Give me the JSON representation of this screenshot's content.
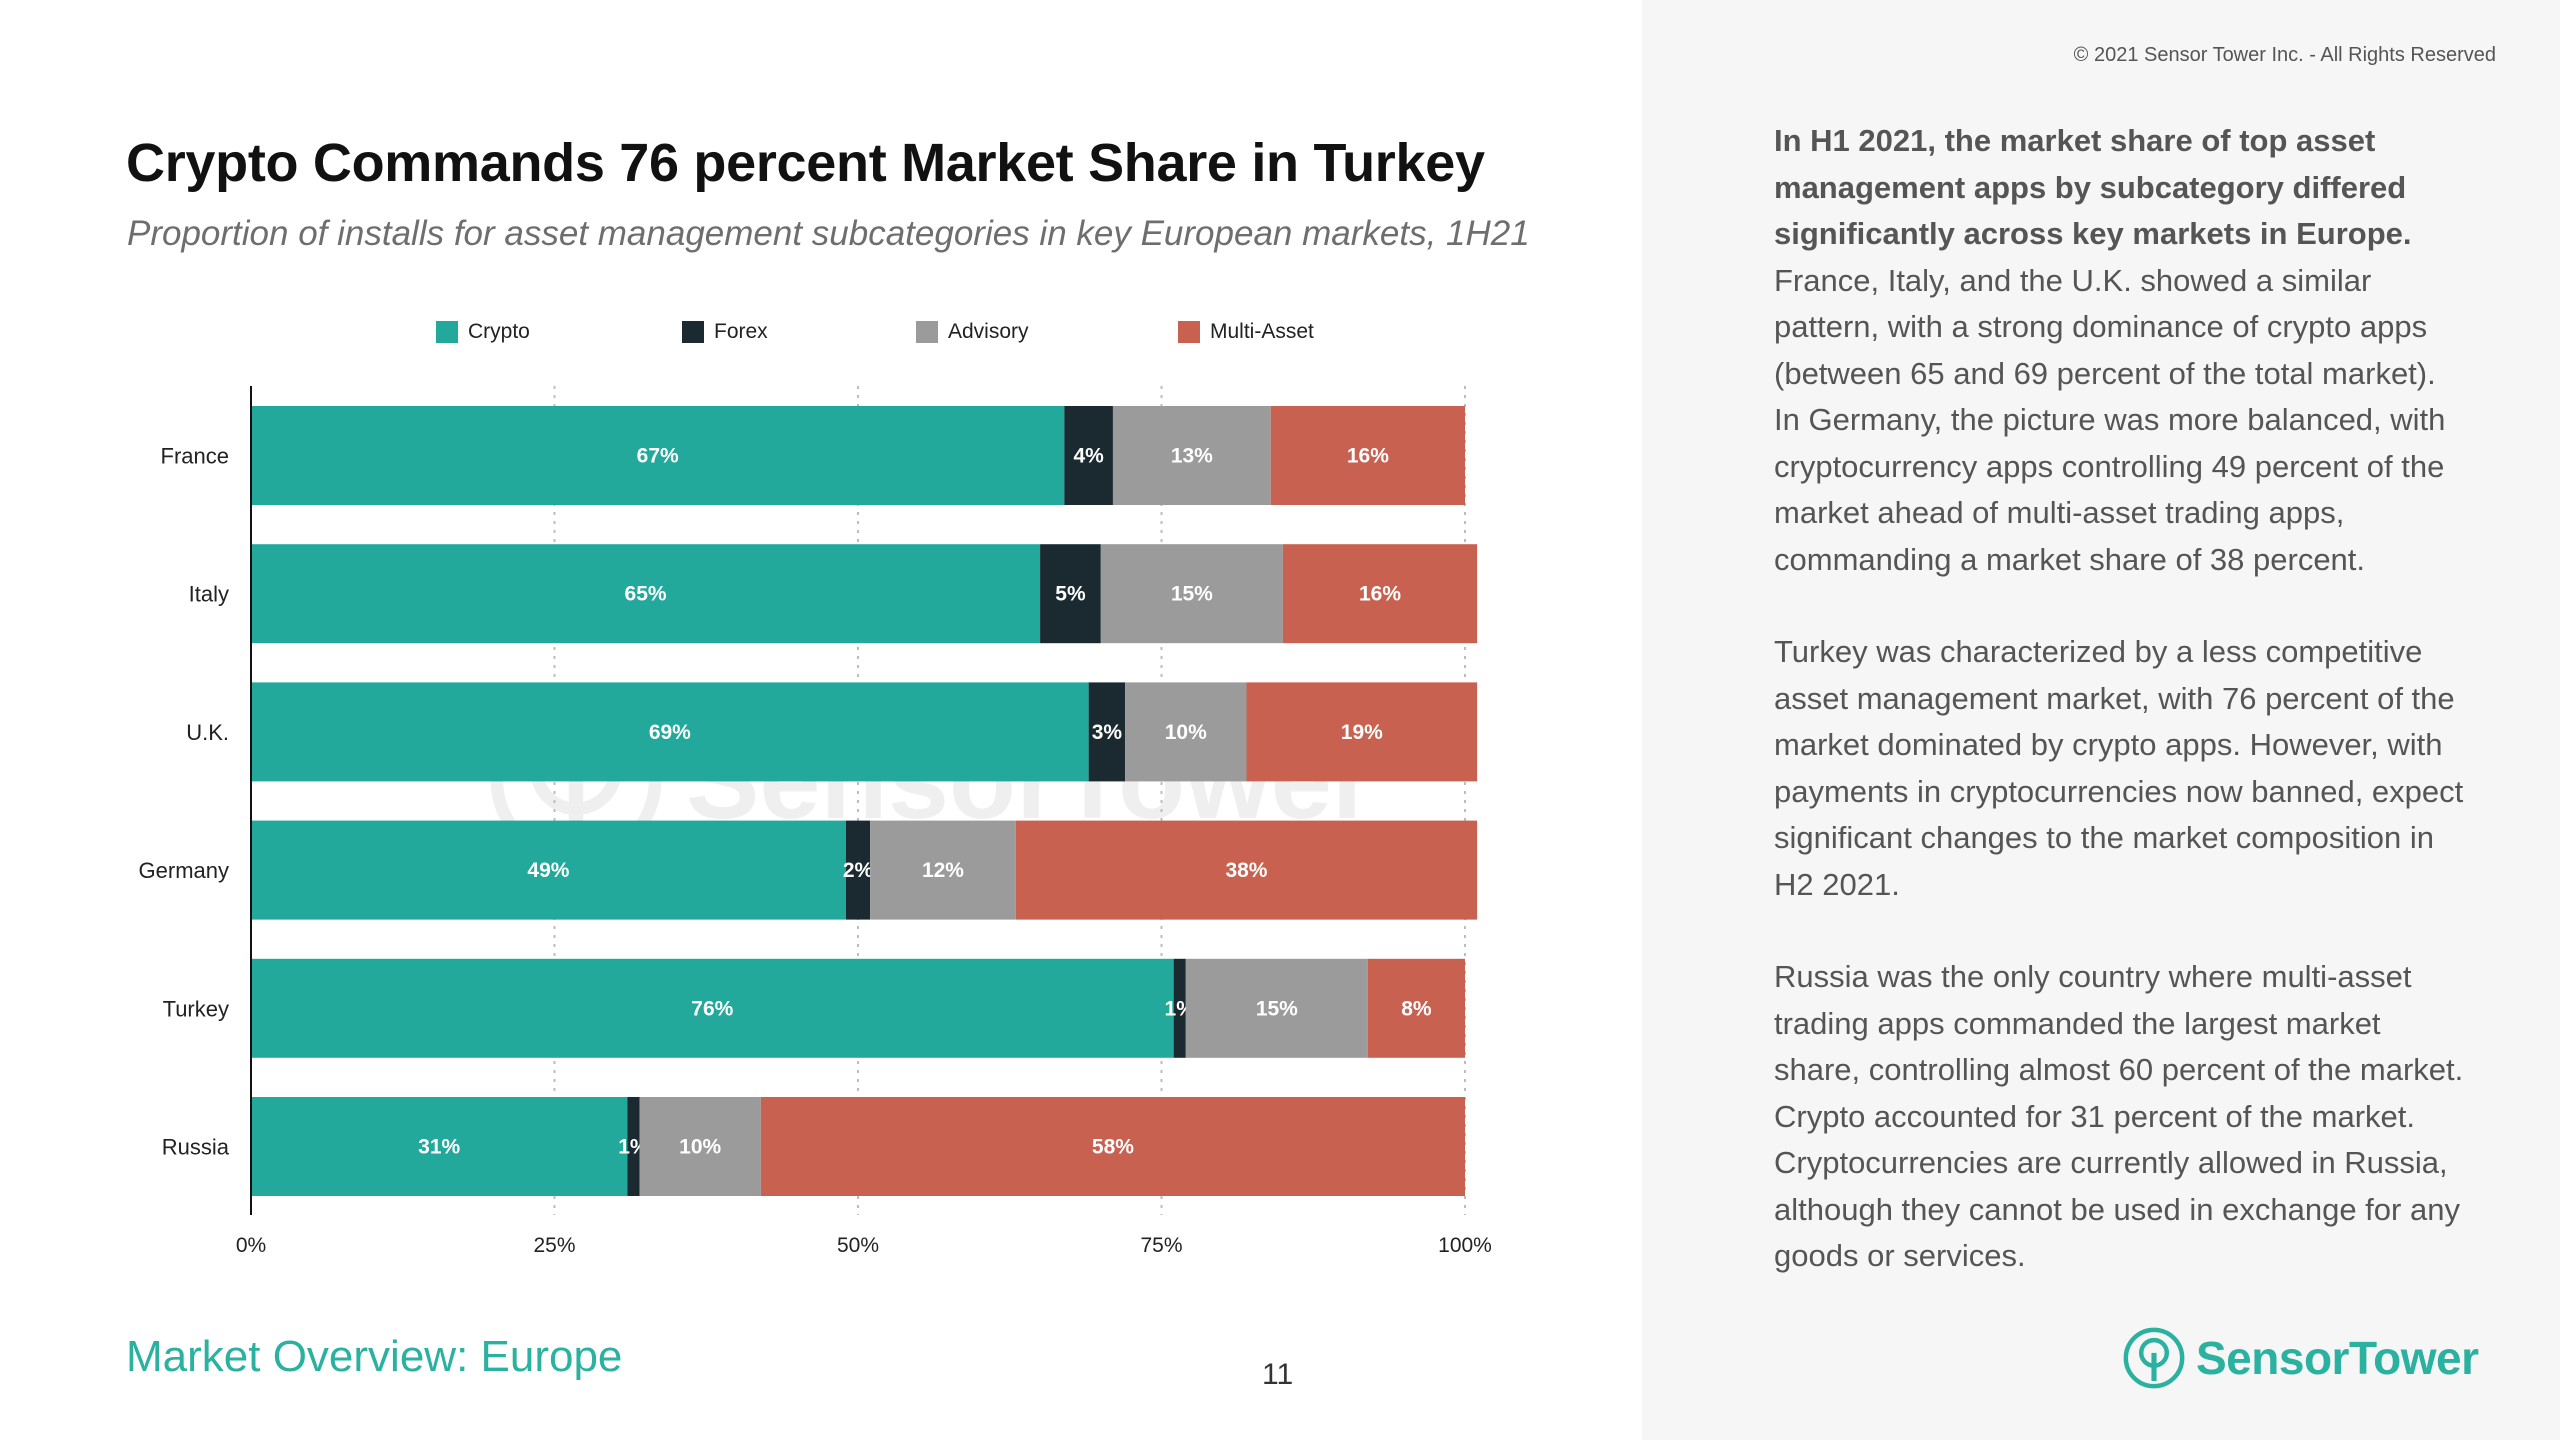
{
  "header": {
    "title": "Crypto Commands 76 percent Market Share in Turkey",
    "subtitle": "Proportion of installs for asset management subcategories in key European markets, 1H21",
    "copyright": "© 2021 Sensor Tower Inc. - All Rights Reserved"
  },
  "footer": {
    "section": "Market Overview: Europe",
    "page_number": "11"
  },
  "logo": {
    "text": "SensorTower"
  },
  "watermark": {
    "text": "SensorTower"
  },
  "commentary": {
    "p1_bold": "In H1 2021, the market share of top asset management apps by subcategory differed significantly across key markets in Europe.",
    "p1_rest": " France, Italy, and the U.K. showed a similar pattern, with a strong dominance of crypto apps (between 65 and 69 percent of the total market). In Germany, the picture was more balanced, with cryptocurrency apps controlling 49 percent of the market ahead of multi-asset trading apps, commanding a market share of 38 percent.",
    "p2": "Turkey was characterized by a less competitive asset management market, with 76 percent of the market dominated by crypto apps. However, with payments in cryptocurrencies now banned, expect significant changes to the market composition in H2 2021.",
    "p3": "Russia was the only country where multi-asset trading apps commanded the largest market share, controlling almost 60 percent of the market. Crypto accounted for 31 percent of the market. Cryptocurrencies are currently allowed in Russia, although they cannot be used in exchange for any goods or services."
  },
  "colors": {
    "Crypto": "#22a99c",
    "Forex": "#1a2a30",
    "Advisory": "#9b9b9b",
    "Multi-Asset": "#c96150",
    "accent": "#2bb1a0"
  },
  "chart_data": {
    "type": "bar",
    "orientation": "horizontal",
    "stacked": true,
    "title": "Crypto Commands 76 percent Market Share in Turkey",
    "subtitle": "Proportion of installs for asset management subcategories in key European markets, 1H21",
    "categories": [
      "France",
      "Italy",
      "U.K.",
      "Germany",
      "Turkey",
      "Russia"
    ],
    "series": [
      {
        "name": "Crypto",
        "values": [
          67,
          65,
          69,
          49,
          76,
          31
        ],
        "labels": [
          "67%",
          "65%",
          "69%",
          "49%",
          "76%",
          "31%"
        ]
      },
      {
        "name": "Forex",
        "values": [
          4,
          5,
          3,
          2,
          1,
          1
        ],
        "labels": [
          "4%",
          "5%",
          "3%",
          "2%",
          "1%",
          "1%"
        ]
      },
      {
        "name": "Advisory",
        "values": [
          13,
          15,
          10,
          12,
          15,
          10
        ],
        "labels": [
          "13%",
          "15%",
          "10%",
          "12%",
          "15%",
          "10%"
        ]
      },
      {
        "name": "Multi-Asset",
        "values": [
          16,
          16,
          19,
          38,
          8,
          58
        ],
        "labels": [
          "16%",
          "16%",
          "19%",
          "38%",
          "8%",
          "58%"
        ]
      }
    ],
    "xlim": [
      0,
      100
    ],
    "xticks": [
      0,
      25,
      50,
      75,
      100
    ],
    "xtick_labels": [
      "0%",
      "25%",
      "50%",
      "75%",
      "100%"
    ],
    "grid": "vertical dotted",
    "legend": "top"
  }
}
